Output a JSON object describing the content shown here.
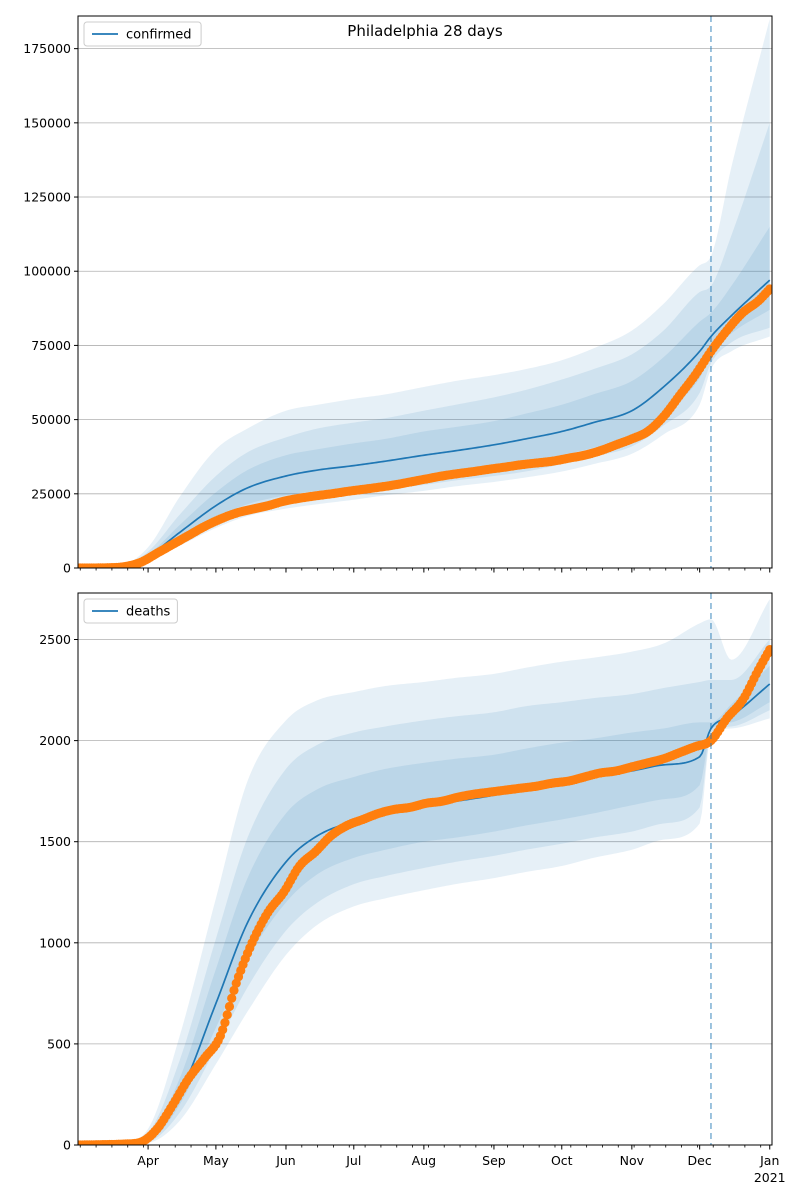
{
  "chart_data": [
    {
      "type": "line",
      "title": "Philadelphia 28 days",
      "legend": {
        "label": "confirmed",
        "placement": "top-left"
      },
      "grid": "y",
      "xlim": [
        "2020-03-01",
        "2021-01-02"
      ],
      "ylim": [
        0,
        186000
      ],
      "yticks": [
        0,
        25000,
        50000,
        75000,
        100000,
        125000,
        150000,
        175000
      ],
      "ytick_labels": [
        "0",
        "25000",
        "50000",
        "75000",
        "100000",
        "125000",
        "150000",
        "175000"
      ],
      "forecast_start": "2020-12-06",
      "colors": {
        "line": "#1f77b4",
        "observed": "#ff7f0e",
        "band": "#1f77b4",
        "vline": "#1f77b4"
      },
      "model": {
        "dates": [
          "2020-03-01",
          "2020-03-20",
          "2020-04-01",
          "2020-04-15",
          "2020-05-01",
          "2020-05-15",
          "2020-06-01",
          "2020-06-15",
          "2020-07-01",
          "2020-07-15",
          "2020-08-01",
          "2020-08-15",
          "2020-09-01",
          "2020-09-15",
          "2020-10-01",
          "2020-10-15",
          "2020-11-01",
          "2020-11-15",
          "2020-12-01",
          "2020-12-06",
          "2020-12-15",
          "2021-01-01"
        ],
        "median": [
          0,
          500,
          4000,
          12000,
          21000,
          27000,
          31000,
          33000,
          34500,
          36000,
          38000,
          39500,
          41500,
          43500,
          46000,
          49000,
          53000,
          61000,
          73000,
          78000,
          85000,
          97000
        ],
        "band1_low": [
          0,
          400,
          3500,
          10000,
          17000,
          21500,
          24500,
          26000,
          27500,
          29000,
          30500,
          32000,
          34000,
          35500,
          38000,
          40500,
          44000,
          52000,
          64000,
          72000,
          79000,
          87000
        ],
        "band1_high": [
          0,
          600,
          4500,
          14500,
          25500,
          33000,
          38000,
          40000,
          42000,
          43500,
          46000,
          47500,
          49500,
          52000,
          55000,
          58500,
          63000,
          71000,
          83000,
          86000,
          95000,
          115000
        ],
        "band2_low": [
          0,
          300,
          3000,
          8500,
          15000,
          19500,
          22000,
          23500,
          25000,
          26500,
          28000,
          29500,
          31000,
          32500,
          35000,
          37500,
          41000,
          48000,
          59000,
          69000,
          76000,
          81000
        ],
        "band2_high": [
          0,
          700,
          5500,
          18000,
          31000,
          39000,
          44000,
          47000,
          49000,
          50500,
          53000,
          55000,
          57500,
          60000,
          63500,
          67000,
          72000,
          80000,
          93000,
          95000,
          112000,
          150000
        ],
        "band3_low": [
          0,
          250,
          2500,
          7500,
          13500,
          17500,
          20000,
          21500,
          23000,
          24500,
          26000,
          27500,
          29000,
          30500,
          32500,
          35000,
          38500,
          45000,
          55000,
          67000,
          73000,
          78000
        ],
        "band3_high": [
          0,
          900,
          7000,
          24000,
          40000,
          47000,
          53000,
          55000,
          57000,
          58500,
          61000,
          63000,
          65000,
          67000,
          70000,
          74000,
          80000,
          89000,
          102000,
          105000,
          135000,
          185000
        ]
      },
      "observed": {
        "dates": [
          "2020-03-01",
          "2020-03-15",
          "2020-03-22",
          "2020-03-29",
          "2020-04-05",
          "2020-04-12",
          "2020-04-19",
          "2020-04-26",
          "2020-05-03",
          "2020-05-10",
          "2020-05-17",
          "2020-05-24",
          "2020-05-31",
          "2020-06-07",
          "2020-06-14",
          "2020-06-21",
          "2020-06-28",
          "2020-07-05",
          "2020-07-12",
          "2020-07-19",
          "2020-07-26",
          "2020-08-02",
          "2020-08-09",
          "2020-08-16",
          "2020-08-23",
          "2020-08-30",
          "2020-09-06",
          "2020-09-13",
          "2020-09-20",
          "2020-09-27",
          "2020-10-04",
          "2020-10-11",
          "2020-10-18",
          "2020-10-25",
          "2020-11-01",
          "2020-11-08",
          "2020-11-15",
          "2020-11-22",
          "2020-11-29",
          "2020-12-06",
          "2020-12-13",
          "2020-12-20",
          "2020-12-27",
          "2021-01-01"
        ],
        "values": [
          0,
          100,
          500,
          2000,
          5000,
          8000,
          11000,
          14000,
          16500,
          18500,
          19800,
          21000,
          22500,
          23500,
          24300,
          25000,
          25800,
          26500,
          27200,
          28000,
          29000,
          30000,
          31000,
          31800,
          32500,
          33300,
          34000,
          34800,
          35400,
          36000,
          37000,
          38000,
          39500,
          41500,
          43500,
          46000,
          51000,
          58000,
          65000,
          73000,
          80000,
          86000,
          90000,
          94000
        ]
      }
    },
    {
      "type": "line",
      "title": "",
      "legend": {
        "label": "deaths",
        "placement": "top-left"
      },
      "grid": "y",
      "xlim": [
        "2020-03-01",
        "2021-01-02"
      ],
      "ylim": [
        0,
        2730
      ],
      "yticks": [
        0,
        500,
        1000,
        1500,
        2000,
        2500
      ],
      "ytick_labels": [
        "0",
        "500",
        "1000",
        "1500",
        "2000",
        "2500"
      ],
      "xtick_labels": [
        {
          "date": "2020-04-01",
          "label": "Apr"
        },
        {
          "date": "2020-05-01",
          "label": "May"
        },
        {
          "date": "2020-06-01",
          "label": "Jun"
        },
        {
          "date": "2020-07-01",
          "label": "Jul"
        },
        {
          "date": "2020-08-01",
          "label": "Aug"
        },
        {
          "date": "2020-09-01",
          "label": "Sep"
        },
        {
          "date": "2020-10-01",
          "label": "Oct"
        },
        {
          "date": "2020-11-01",
          "label": "Nov"
        },
        {
          "date": "2020-12-01",
          "label": "Dec"
        },
        {
          "date": "2021-01-01",
          "label": "Jan",
          "sublabel": "2021"
        }
      ],
      "forecast_start": "2020-12-06",
      "colors": {
        "line": "#1f77b4",
        "observed": "#ff7f0e",
        "band": "#1f77b4",
        "vline": "#1f77b4"
      },
      "model": {
        "dates": [
          "2020-03-01",
          "2020-03-20",
          "2020-04-01",
          "2020-04-15",
          "2020-05-01",
          "2020-05-15",
          "2020-06-01",
          "2020-06-15",
          "2020-07-01",
          "2020-07-15",
          "2020-08-01",
          "2020-08-15",
          "2020-09-01",
          "2020-09-15",
          "2020-10-01",
          "2020-10-15",
          "2020-11-01",
          "2020-11-15",
          "2020-12-01",
          "2020-12-06",
          "2020-12-15",
          "2021-01-01"
        ],
        "median": [
          0,
          5,
          30,
          250,
          700,
          1100,
          1400,
          1530,
          1600,
          1640,
          1680,
          1700,
          1730,
          1760,
          1790,
          1820,
          1850,
          1880,
          1920,
          2060,
          2120,
          2280
        ],
        "band1_low": [
          0,
          4,
          20,
          200,
          580,
          920,
          1200,
          1340,
          1420,
          1460,
          1500,
          1520,
          1550,
          1580,
          1610,
          1640,
          1680,
          1710,
          1780,
          2050,
          2090,
          2190
        ],
        "band1_high": [
          0,
          6,
          45,
          330,
          870,
          1320,
          1640,
          1760,
          1820,
          1860,
          1890,
          1910,
          1930,
          1960,
          1990,
          2010,
          2040,
          2060,
          2090,
          2090,
          2180,
          2370
        ],
        "band2_low": [
          0,
          3,
          15,
          160,
          480,
          780,
          1060,
          1200,
          1290,
          1330,
          1370,
          1400,
          1430,
          1460,
          1490,
          1520,
          1550,
          1590,
          1670,
          2040,
          2070,
          2150
        ],
        "band2_high": [
          0,
          8,
          60,
          420,
          1020,
          1520,
          1860,
          1980,
          2040,
          2070,
          2100,
          2120,
          2140,
          2170,
          2190,
          2210,
          2230,
          2260,
          2290,
          2300,
          2300,
          2500
        ],
        "band3_low": [
          0,
          2,
          10,
          120,
          400,
          660,
          940,
          1090,
          1180,
          1220,
          1260,
          1290,
          1320,
          1350,
          1380,
          1420,
          1460,
          1510,
          1590,
          2030,
          2060,
          2110
        ],
        "band3_high": [
          0,
          10,
          80,
          540,
          1220,
          1800,
          2100,
          2200,
          2240,
          2270,
          2290,
          2310,
          2330,
          2360,
          2390,
          2410,
          2440,
          2480,
          2580,
          2600,
          2400,
          2700
        ]
      },
      "observed": {
        "dates": [
          "2020-03-01",
          "2020-03-22",
          "2020-03-29",
          "2020-04-05",
          "2020-04-12",
          "2020-04-19",
          "2020-04-26",
          "2020-05-03",
          "2020-05-10",
          "2020-05-17",
          "2020-05-24",
          "2020-05-31",
          "2020-06-07",
          "2020-06-14",
          "2020-06-21",
          "2020-06-28",
          "2020-07-05",
          "2020-07-12",
          "2020-07-19",
          "2020-07-26",
          "2020-08-02",
          "2020-08-09",
          "2020-08-16",
          "2020-08-23",
          "2020-08-30",
          "2020-09-06",
          "2020-09-13",
          "2020-09-20",
          "2020-09-27",
          "2020-10-04",
          "2020-10-11",
          "2020-10-18",
          "2020-10-25",
          "2020-11-01",
          "2020-11-08",
          "2020-11-15",
          "2020-11-22",
          "2020-11-29",
          "2020-12-06",
          "2020-12-13",
          "2020-12-20",
          "2020-12-27",
          "2021-01-01"
        ],
        "values": [
          0,
          5,
          15,
          80,
          200,
          330,
          430,
          540,
          800,
          1000,
          1150,
          1250,
          1380,
          1450,
          1530,
          1580,
          1610,
          1640,
          1660,
          1670,
          1690,
          1700,
          1720,
          1735,
          1745,
          1755,
          1765,
          1775,
          1790,
          1800,
          1820,
          1840,
          1850,
          1870,
          1890,
          1910,
          1940,
          1970,
          2000,
          2110,
          2200,
          2350,
          2450
        ]
      }
    }
  ]
}
